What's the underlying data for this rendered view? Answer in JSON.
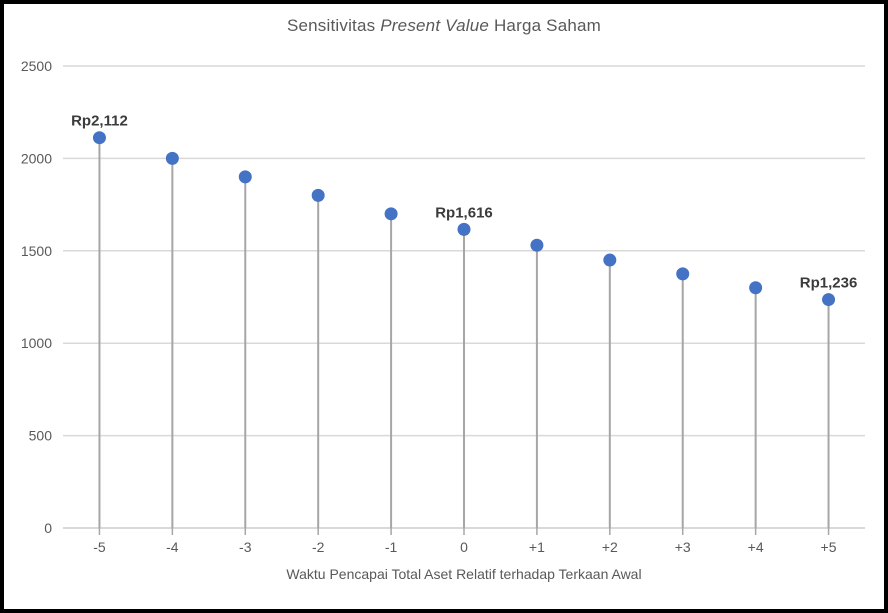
{
  "chart_data": {
    "type": "lollipop",
    "title_parts": [
      "Sensitivitas ",
      "Present Value",
      " Harga Saham"
    ],
    "title_plain": "Sensitivitas Present Value Harga Saham",
    "categories": [
      "-5",
      "-4",
      "-3",
      "-2",
      "-1",
      "0",
      "+1",
      "+2",
      "+3",
      "+4",
      "+5"
    ],
    "values": [
      2112,
      2000,
      1900,
      1800,
      1700,
      1616,
      1530,
      1450,
      1375,
      1300,
      1236
    ],
    "data_labels": [
      {
        "index": 0,
        "text": "Rp2,112"
      },
      {
        "index": 5,
        "text": "Rp1,616"
      },
      {
        "index": 10,
        "text": "Rp1,236"
      }
    ],
    "xlabel": "Waktu Pencapai Total Aset Relatif terhadap Terkaan Awal",
    "ylabel": "",
    "ylim": [
      0,
      2500
    ],
    "ytick_step": 500,
    "yticks": [
      "0",
      "500",
      "1000",
      "1500",
      "2000",
      "2500"
    ],
    "grid": true,
    "legend": "none",
    "colors": {
      "dot": "#4472C4",
      "stem": "#A6A6A6",
      "tick": "#A6A6A6",
      "grid": "#D9D9D9",
      "axis_line": "#D9D9D9",
      "title": "#595959",
      "axis_text": "#595959",
      "data_label": "#3B3B3B"
    }
  }
}
